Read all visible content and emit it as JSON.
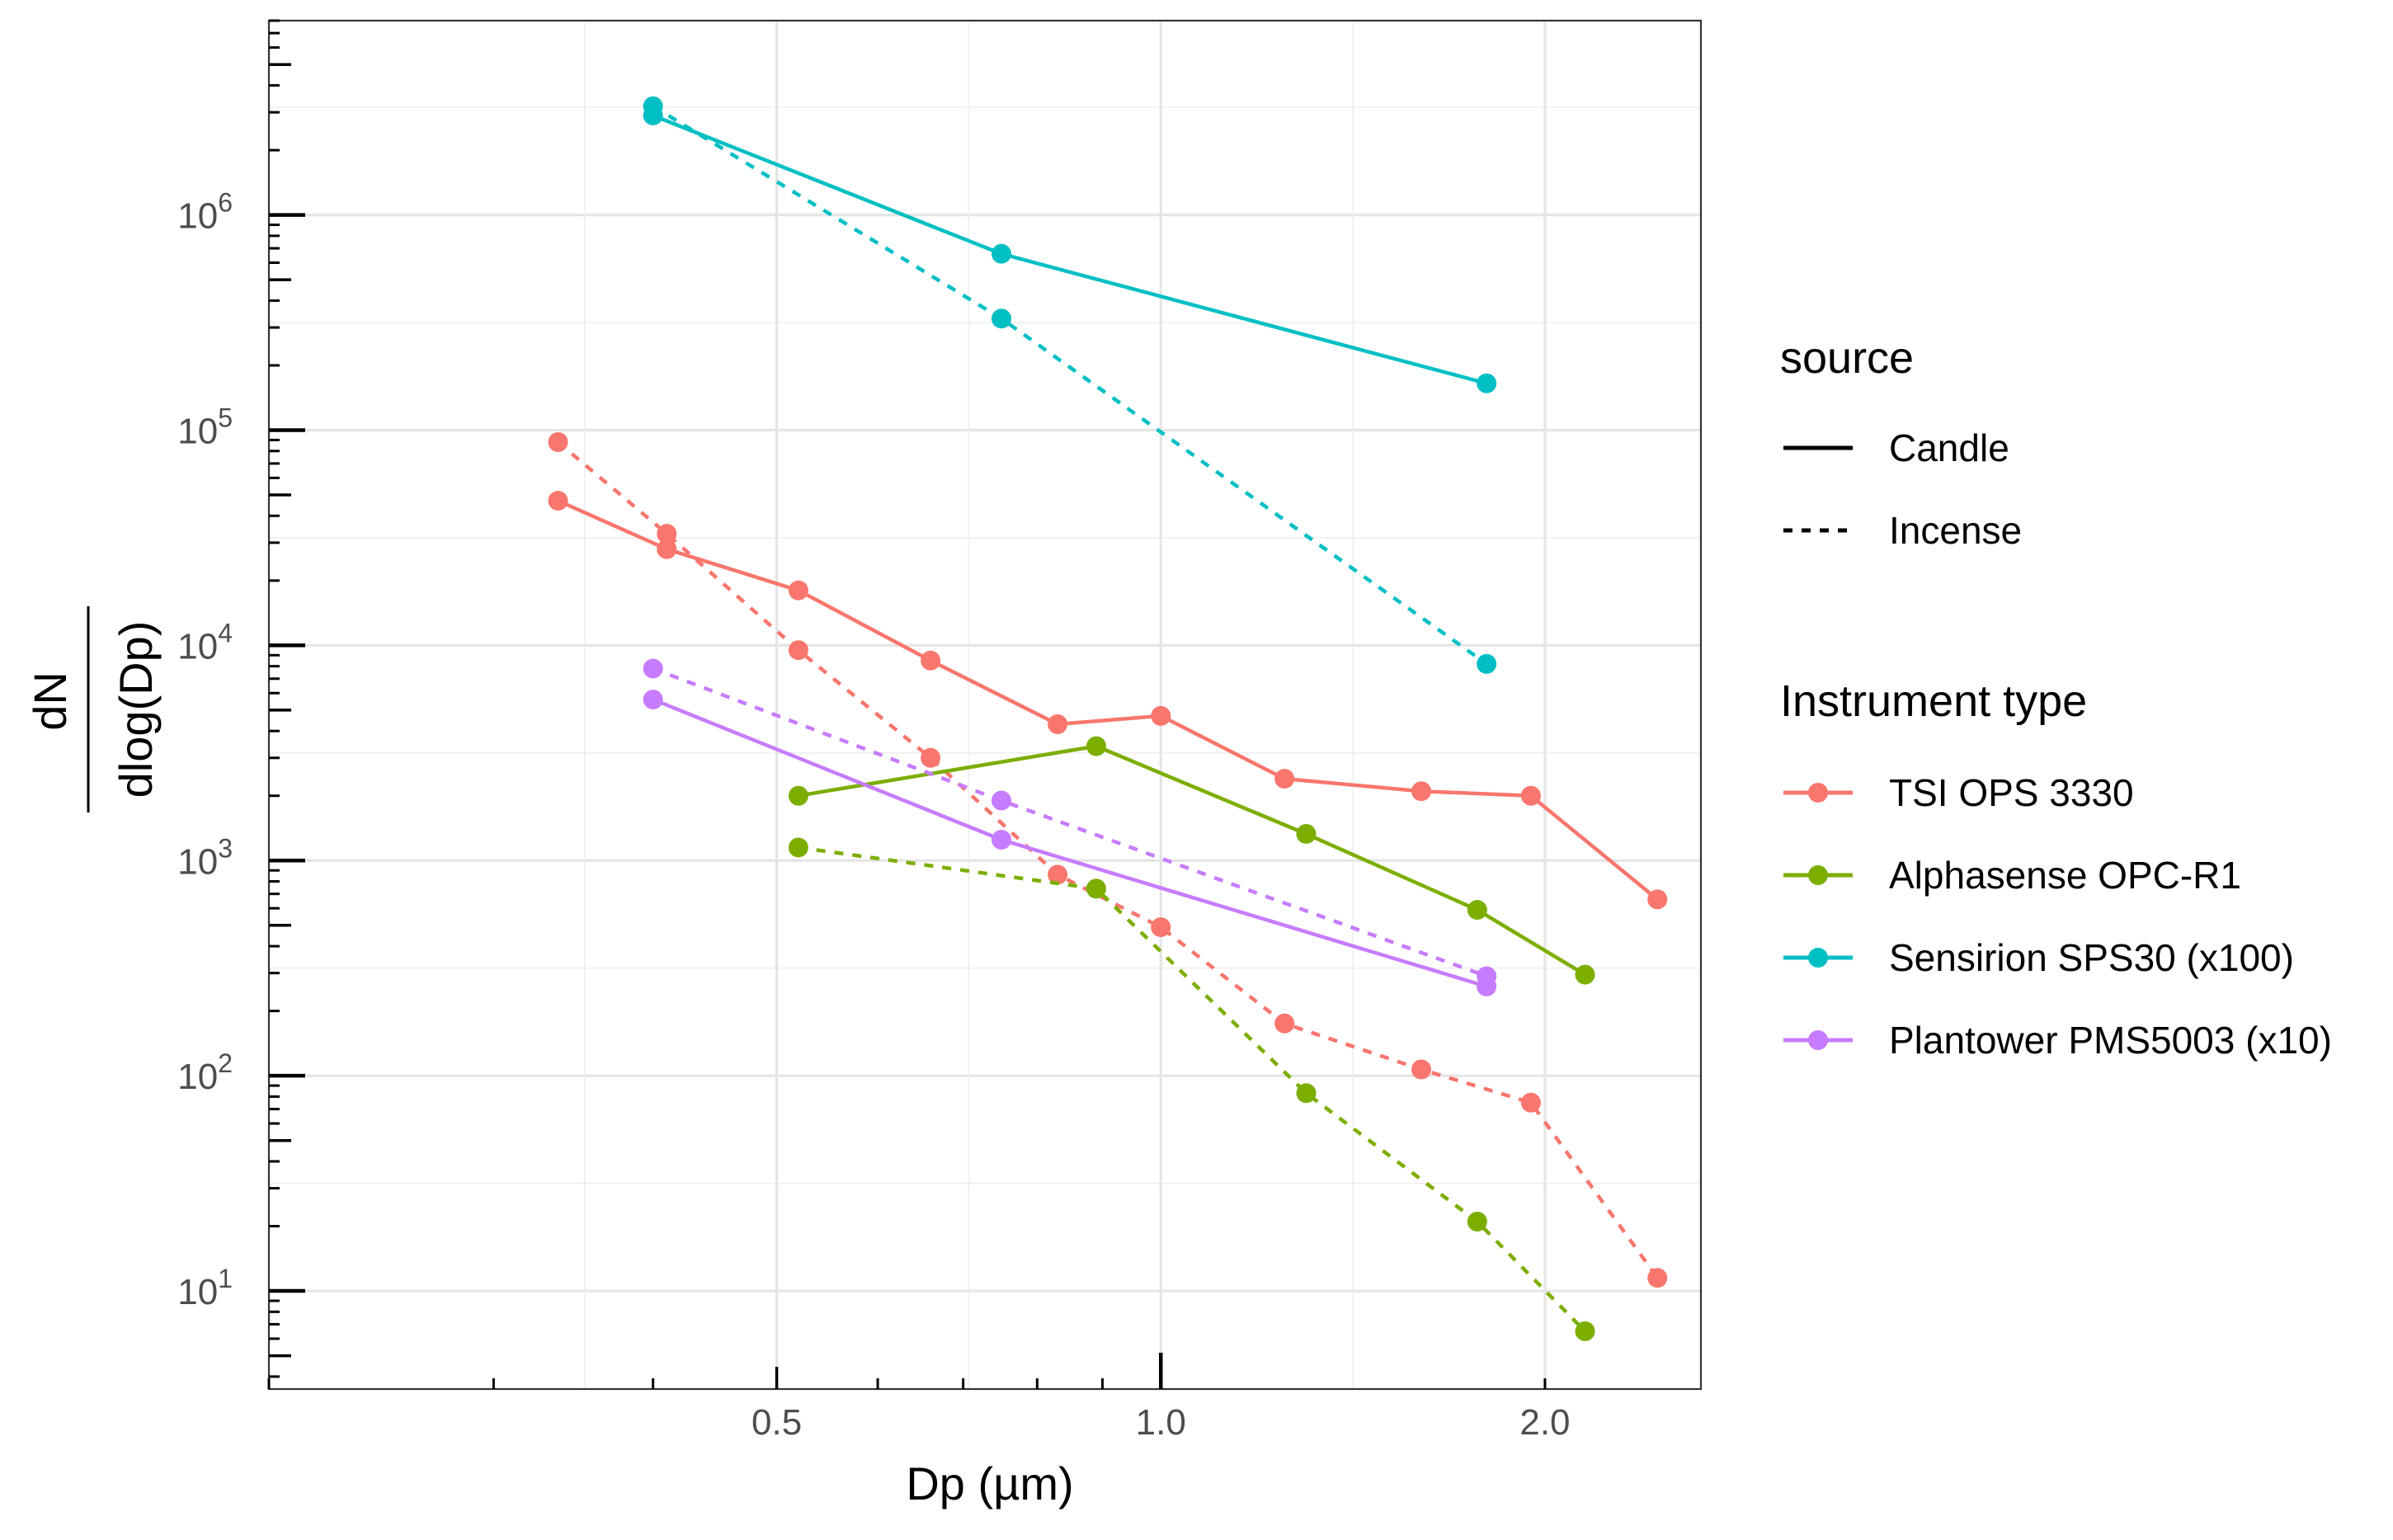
{
  "chart_data": {
    "type": "line",
    "title": "",
    "xlabel": "Dp (µm)",
    "ylabel": {
      "numerator": "dN",
      "denominator": "dlog(Dp)"
    },
    "x_scale": "log10",
    "y_scale": "log10",
    "xlim": [
      0.2,
      2.65
    ],
    "ylim": [
      3.5,
      8000000
    ],
    "grid": true,
    "x_ticks": [
      {
        "value": 0.5,
        "label": "0.5"
      },
      {
        "value": 1.0,
        "label": "1.0"
      },
      {
        "value": 2.0,
        "label": "2.0"
      }
    ],
    "y_ticks": [
      {
        "value": 10,
        "base": "10",
        "exp": "1"
      },
      {
        "value": 100,
        "base": "10",
        "exp": "2"
      },
      {
        "value": 1000,
        "base": "10",
        "exp": "3"
      },
      {
        "value": 10000,
        "base": "10",
        "exp": "4"
      },
      {
        "value": 100000,
        "base": "10",
        "exp": "5"
      },
      {
        "value": 1000000,
        "base": "10",
        "exp": "6"
      }
    ],
    "legend": {
      "position": "right",
      "source_title": "source",
      "source_items": [
        {
          "label": "Candle",
          "linetype": "solid"
        },
        {
          "label": "Incense",
          "linetype": "dashed"
        }
      ],
      "instrument_title": "Instrument type",
      "instrument_items": [
        {
          "label": "TSI OPS 3330",
          "color": "#F8766D"
        },
        {
          "label": "Alphasense OPC-R1",
          "color": "#7CAE00"
        },
        {
          "label": "Sensirion SPS30 (x100)",
          "color": "#00BFC4"
        },
        {
          "label": "Plantower PMS5003 (x10)",
          "color": "#C77CFF"
        }
      ]
    },
    "series": [
      {
        "name": "TSI OPS 3330",
        "source": "Candle",
        "color": "#F8766D",
        "linetype": "solid",
        "x": [
          0.337,
          0.41,
          0.52,
          0.66,
          0.83,
          1.0,
          1.25,
          1.6,
          1.95,
          2.45
        ],
        "y": [
          47000,
          28000,
          18000,
          8500,
          4300,
          4700,
          2400,
          2100,
          2000,
          660
        ]
      },
      {
        "name": "TSI OPS 3330",
        "source": "Incense",
        "color": "#F8766D",
        "linetype": "dashed",
        "x": [
          0.337,
          0.41,
          0.52,
          0.66,
          0.83,
          1.0,
          1.25,
          1.6,
          1.95,
          2.45
        ],
        "y": [
          88000,
          33000,
          9500,
          3000,
          860,
          490,
          175,
          107,
          75,
          11.5
        ]
      },
      {
        "name": "Alphasense OPC-R1",
        "source": "Candle",
        "color": "#7CAE00",
        "linetype": "solid",
        "x": [
          0.52,
          0.89,
          1.3,
          1.77,
          2.15
        ],
        "y": [
          2000,
          3400,
          1330,
          590,
          295
        ]
      },
      {
        "name": "Alphasense OPC-R1",
        "source": "Incense",
        "color": "#7CAE00",
        "linetype": "dashed",
        "x": [
          0.52,
          0.89,
          1.3,
          1.77,
          2.15
        ],
        "y": [
          1150,
          740,
          83,
          21,
          6.5
        ]
      },
      {
        "name": "Sensirion SPS30 (x100)",
        "source": "Candle",
        "color": "#00BFC4",
        "linetype": "solid",
        "x": [
          0.4,
          0.75,
          1.8
        ],
        "y": [
          2900000,
          660000,
          165000
        ]
      },
      {
        "name": "Sensirion SPS30 (x100)",
        "source": "Incense",
        "color": "#00BFC4",
        "linetype": "dashed",
        "x": [
          0.4,
          0.75,
          1.8
        ],
        "y": [
          3200000,
          330000,
          8200
        ]
      },
      {
        "name": "Plantower PMS5003 (x10)",
        "source": "Candle",
        "color": "#C77CFF",
        "linetype": "solid",
        "x": [
          0.4,
          0.75,
          1.8
        ],
        "y": [
          5600,
          1250,
          260
        ]
      },
      {
        "name": "Plantower PMS5003 (x10)",
        "source": "Incense",
        "color": "#C77CFF",
        "linetype": "dashed",
        "x": [
          0.4,
          0.75,
          1.8
        ],
        "y": [
          7800,
          1900,
          290
        ]
      }
    ]
  }
}
